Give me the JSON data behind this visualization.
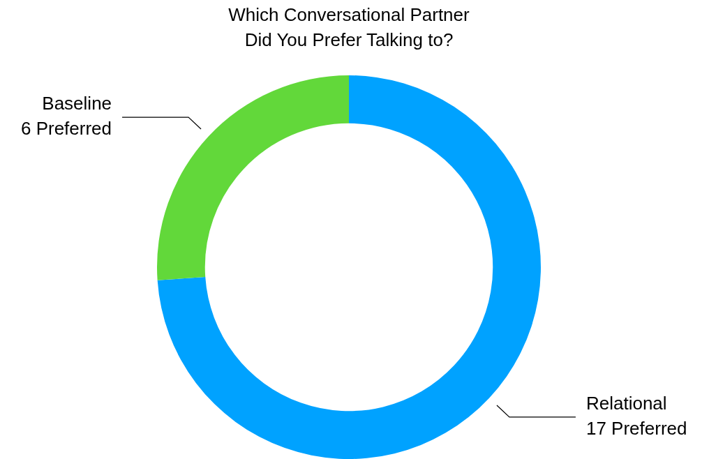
{
  "chart_data": {
    "type": "donut",
    "title": "Which Conversational Partner\nDid You Prefer Talking to?",
    "categories": [
      "Relational",
      "Baseline"
    ],
    "values": [
      17,
      6
    ],
    "colors": [
      "#00a2ff",
      "#62d83a"
    ],
    "value_labels": [
      "17 Preferred",
      "6 Preferred"
    ],
    "legend": false
  }
}
